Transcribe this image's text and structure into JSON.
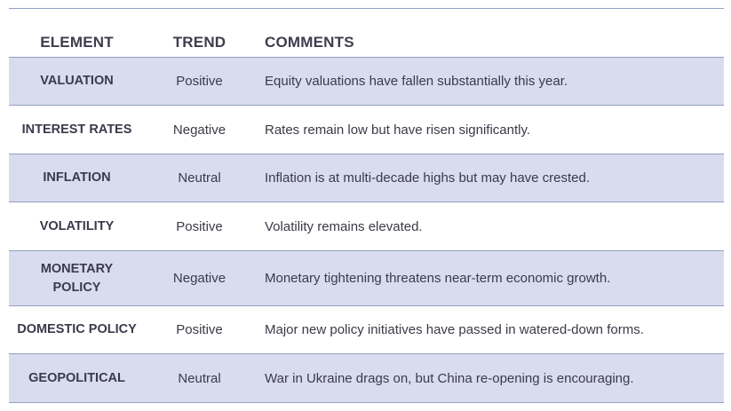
{
  "table": {
    "headers": {
      "element": "ELEMENT",
      "trend": "TREND",
      "comments": "COMMENTS"
    },
    "rows": [
      {
        "element": "VALUATION",
        "trend": "Positive",
        "comment": "Equity valuations have fallen substantially this year."
      },
      {
        "element": "INTEREST RATES",
        "trend": "Negative",
        "comment": "Rates remain low but have risen significantly."
      },
      {
        "element": "INFLATION",
        "trend": "Neutral",
        "comment": "Inflation is at multi-decade highs but may have crested."
      },
      {
        "element": "VOLATILITY",
        "trend": "Positive",
        "comment": "Volatility remains elevated."
      },
      {
        "element": "MONETARY POLICY",
        "trend": "Negative",
        "comment": "Monetary tightening threatens near-term economic growth."
      },
      {
        "element": "DOMESTIC POLICY",
        "trend": "Positive",
        "comment": "Major new policy initiatives have passed in watered-down forms."
      },
      {
        "element": "GEOPOLITICAL",
        "trend": "Neutral",
        "comment": "War in Ukraine drags on, but China re-opening is encouraging."
      }
    ]
  },
  "colors": {
    "shaded_row": "#d9dcef",
    "rule": "#8fa0bf",
    "text": "#3a3a48"
  }
}
